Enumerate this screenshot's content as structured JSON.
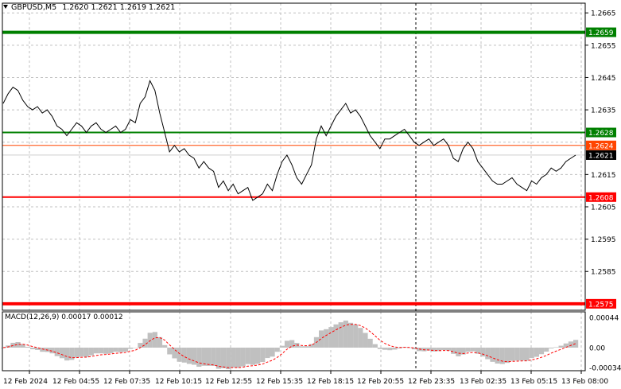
{
  "header": {
    "symbol": "GBPUSD,M5",
    "open": "1.2620",
    "high": "1.2621",
    "low": "1.2619",
    "close": "1.2621"
  },
  "macd": {
    "label": "MACD(12,26,9)",
    "main": "0.00017",
    "signal": "0.00012",
    "axis_ticks": [
      "0.00044",
      "0.00",
      "-0.00034"
    ],
    "histogram_color": "#c0c0c0",
    "signal_color": "#ff0000"
  },
  "price_axis": {
    "ticks": [
      "1.2665",
      "1.2655",
      "1.2645",
      "1.2635",
      "1.2615",
      "1.2605",
      "1.2595",
      "1.2585"
    ]
  },
  "levels": [
    {
      "label": "1.2659",
      "price": 1.2659,
      "color": "#008000",
      "style": "thick"
    },
    {
      "label": "1.2628",
      "price": 1.2628,
      "color": "#008000",
      "style": "normal"
    },
    {
      "label": "1.2624",
      "price": 1.2624,
      "color": "#ff4500",
      "style": "thin"
    },
    {
      "label": "1.2621",
      "price": 1.2621,
      "color": "#000000",
      "style": "bid"
    },
    {
      "label": "1.2608",
      "price": 1.2608,
      "color": "#ff0000",
      "style": "normal"
    },
    {
      "label": "1.2575",
      "price": 1.2575,
      "color": "#ff0000",
      "style": "thick"
    }
  ],
  "time_axis": {
    "ticks": [
      "12 Feb 2024",
      "12 Feb 04:55",
      "12 Feb 07:35",
      "12 Feb 10:15",
      "12 Feb 12:55",
      "12 Feb 15:35",
      "12 Feb 18:15",
      "12 Feb 20:55",
      "12 Feb 23:35",
      "13 Feb 02:35",
      "13 Feb 05:15",
      "13 Feb 08:00"
    ]
  },
  "colors": {
    "background": "#ffffff",
    "grid": "#c0c0c0",
    "price_line": "#000000",
    "crosshair": "#000000"
  },
  "chart_data": {
    "type": "line",
    "title": "GBPUSD,M5",
    "series": [
      {
        "name": "GBPUSD,M5",
        "values": [
          1.2637,
          1.264,
          1.2642,
          1.2641,
          1.2638,
          1.2636,
          1.2635,
          1.2636,
          1.2634,
          1.2635,
          1.2633,
          1.263,
          1.2629,
          1.2627,
          1.2629,
          1.2631,
          1.263,
          1.2628,
          1.263,
          1.2631,
          1.2629,
          1.2628,
          1.2629,
          1.263,
          1.2628,
          1.2629,
          1.2632,
          1.2631,
          1.2637,
          1.2639,
          1.2644,
          1.2641,
          1.2634,
          1.2628,
          1.2622,
          1.2624,
          1.2622,
          1.2623,
          1.2621,
          1.262,
          1.2617,
          1.2619,
          1.2617,
          1.2616,
          1.2611,
          1.2613,
          1.261,
          1.2612,
          1.2609,
          1.261,
          1.2611,
          1.2607,
          1.2608,
          1.2609,
          1.2612,
          1.261,
          1.2615,
          1.2619,
          1.2621,
          1.2618,
          1.2614,
          1.2612,
          1.2615,
          1.2618,
          1.2626,
          1.263,
          1.2627,
          1.263,
          1.2633,
          1.2635,
          1.2637,
          1.2634,
          1.2635,
          1.2633,
          1.263,
          1.2627,
          1.2625,
          1.2623,
          1.2626,
          1.2626,
          1.2627,
          1.2628,
          1.2629,
          1.2627,
          1.2625,
          1.2624,
          1.2625,
          1.2626,
          1.2624,
          1.2625,
          1.2626,
          1.2624,
          1.262,
          1.2619,
          1.2623,
          1.2625,
          1.2623,
          1.2619,
          1.2617,
          1.2615,
          1.2613,
          1.2612,
          1.2612,
          1.2613,
          1.2614,
          1.2612,
          1.2611,
          1.261,
          1.2613,
          1.2612,
          1.2614,
          1.2615,
          1.2617,
          1.2616,
          1.2617,
          1.2619,
          1.262,
          1.2621
        ]
      }
    ],
    "ylim": [
      1.2573,
      1.2668
    ]
  }
}
